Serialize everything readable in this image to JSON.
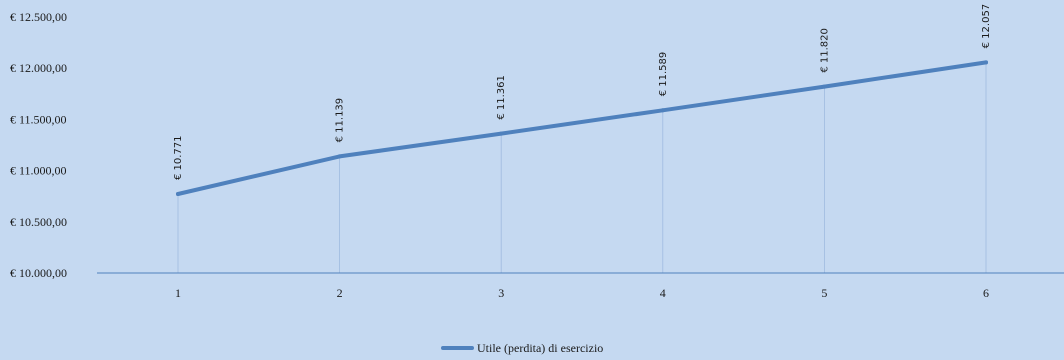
{
  "chart_data": {
    "type": "line",
    "title": "",
    "xlabel": "",
    "ylabel": "",
    "categories": [
      "1",
      "2",
      "3",
      "4",
      "5",
      "6"
    ],
    "series": [
      {
        "name": "Utile (perdita) di esercizio",
        "values": [
          10771,
          11139,
          11361,
          11589,
          11820,
          12057
        ],
        "labels": [
          "€ 10.771",
          "€ 11.139",
          "€ 11.361",
          "€ 11.589",
          "€ 11.820",
          "€ 12.057"
        ],
        "color": "#4f81bd"
      }
    ],
    "ylim": [
      10000,
      12500
    ],
    "yticks": [
      10000,
      10500,
      11000,
      11500,
      12000,
      12500
    ],
    "ytick_labels": [
      "€ 10.000,00",
      "€ 10.500,00",
      "€ 11.000,00",
      "€ 11.500,00",
      "€ 12.000,00",
      "€ 12.500,00"
    ],
    "grid": false,
    "drop_lines": true,
    "legend_position": "bottom",
    "colors": {
      "background": "#c5d9f1",
      "axis": "#4f81bd",
      "drop_line": "#9fbbe0"
    }
  }
}
